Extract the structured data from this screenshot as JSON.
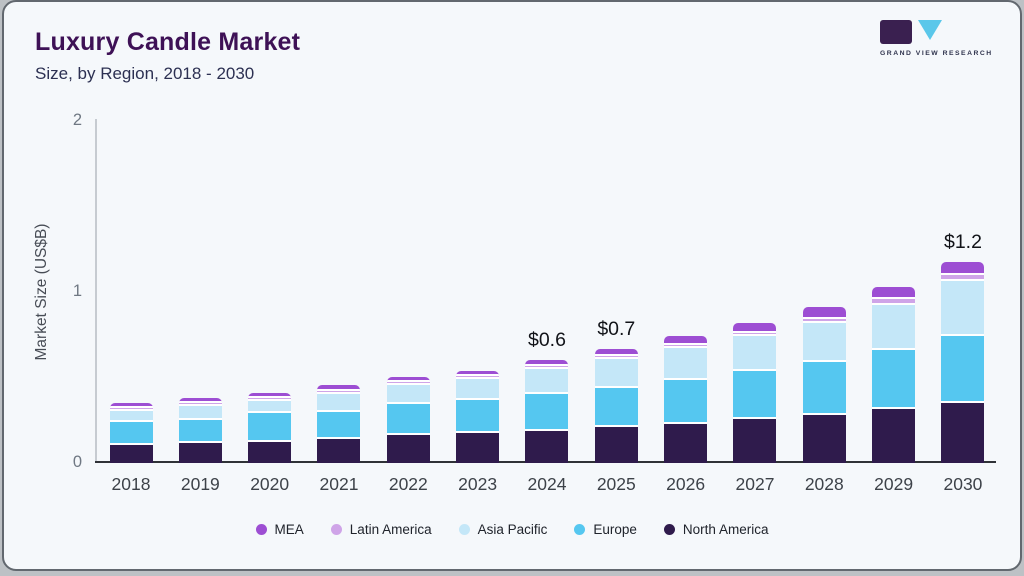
{
  "header": {
    "title": "Luxury Candle Market",
    "subtitle": "Size, by Region, 2018 - 2030",
    "logo_text": "GRAND VIEW RESEARCH"
  },
  "colors": {
    "card_background": "#f5f8fb",
    "title_text": "#3e1156",
    "axis_line": "#2f3237",
    "logo_dark": "#3a2050",
    "logo_cyan": "#5ac7ea"
  },
  "chart_data": {
    "type": "bar",
    "stacked": true,
    "title": "Luxury Candle Market Size, by Region, 2018 - 2030",
    "ylabel": "Market Size (US$B)",
    "ylim": [
      0,
      2
    ],
    "yticks": [
      "0",
      "1",
      "2"
    ],
    "grid": false,
    "legend_position": "bottom",
    "categories": [
      "2018",
      "2019",
      "2020",
      "2021",
      "2022",
      "2023",
      "2024",
      "2025",
      "2026",
      "2027",
      "2028",
      "2029",
      "2030"
    ],
    "series": [
      {
        "name": "North America",
        "color": "#2f1b4c",
        "values": [
          0.105,
          0.115,
          0.125,
          0.14,
          0.165,
          0.175,
          0.185,
          0.21,
          0.23,
          0.255,
          0.28,
          0.315,
          0.35
        ]
      },
      {
        "name": "Europe",
        "color": "#55c7f0",
        "values": [
          0.135,
          0.135,
          0.17,
          0.16,
          0.18,
          0.195,
          0.215,
          0.23,
          0.255,
          0.28,
          0.31,
          0.345,
          0.39
        ]
      },
      {
        "name": "Asia Pacific",
        "color": "#c4e7f8",
        "values": [
          0.065,
          0.08,
          0.07,
          0.105,
          0.11,
          0.125,
          0.145,
          0.17,
          0.185,
          0.205,
          0.23,
          0.265,
          0.32
        ]
      },
      {
        "name": "Latin America",
        "color": "#cfa4e8",
        "values": [
          0.01,
          0.01,
          0.01,
          0.01,
          0.01,
          0.01,
          0.015,
          0.015,
          0.015,
          0.02,
          0.025,
          0.035,
          0.035
        ]
      },
      {
        "name": "MEA",
        "color": "#9d4ed3",
        "values": [
          0.03,
          0.03,
          0.03,
          0.035,
          0.03,
          0.03,
          0.035,
          0.04,
          0.05,
          0.06,
          0.07,
          0.07,
          0.075
        ]
      }
    ],
    "legend_order": [
      "MEA",
      "Latin America",
      "Asia Pacific",
      "Europe",
      "North America"
    ],
    "bar_labels": {
      "2024": "$0.6",
      "2025": "$0.7",
      "2030": "$1.2"
    }
  }
}
